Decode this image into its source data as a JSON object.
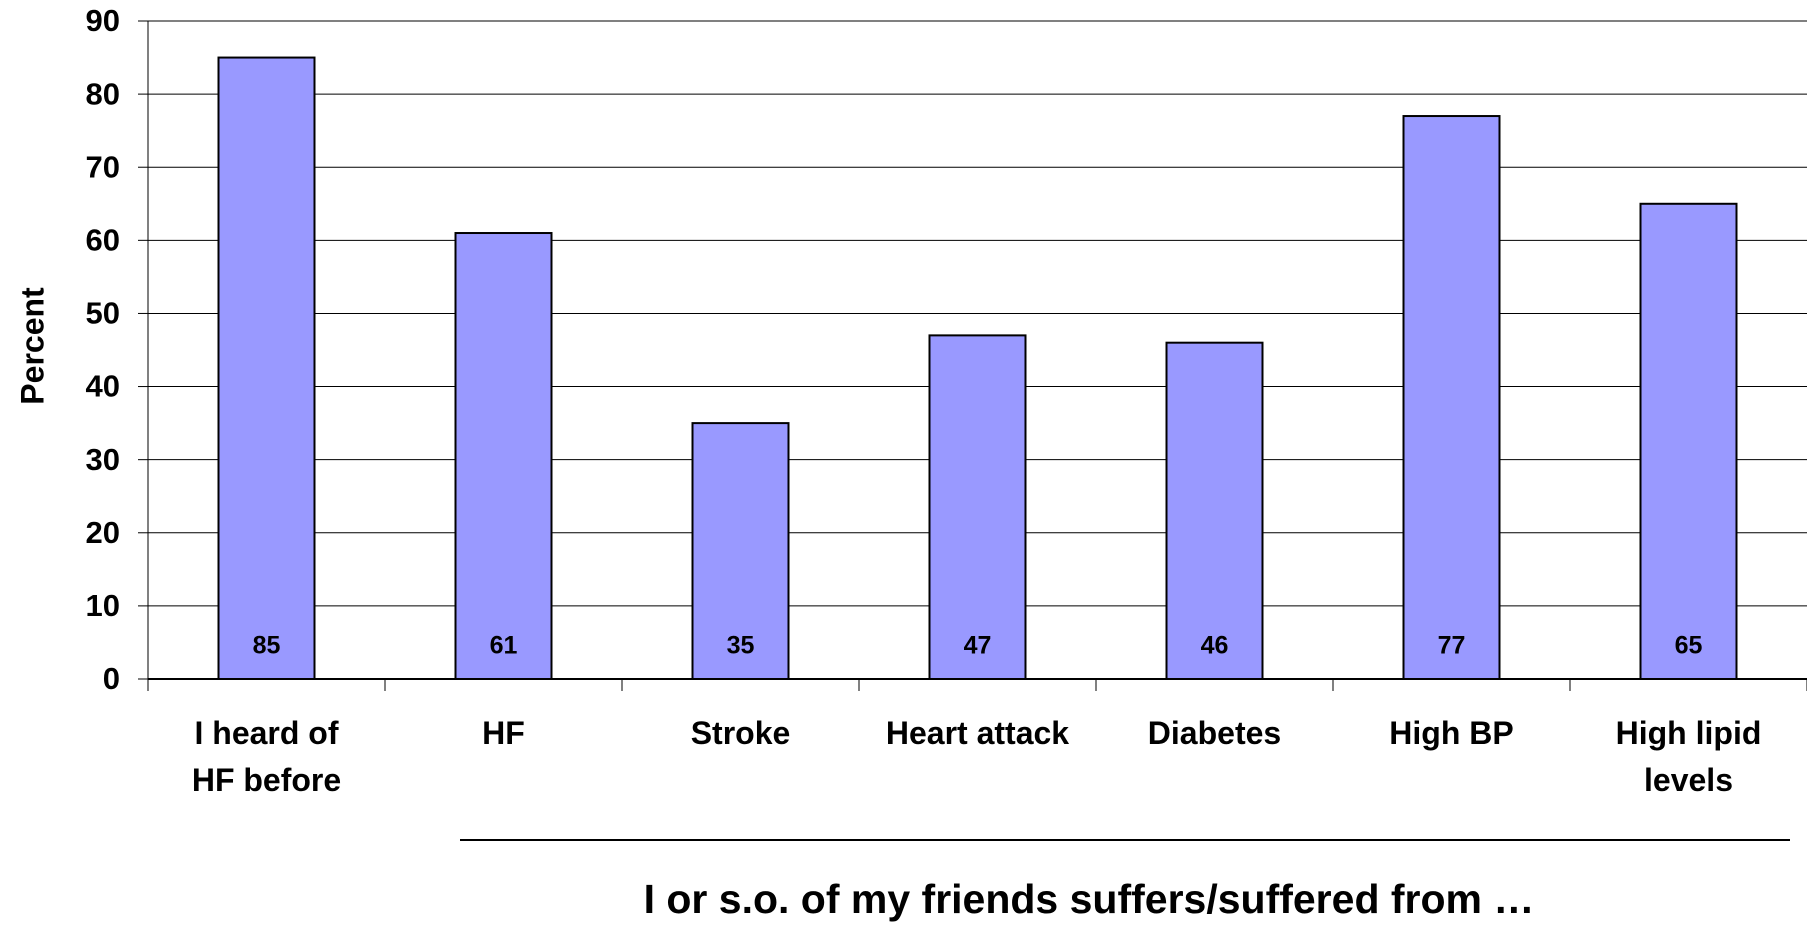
{
  "chart_data": {
    "type": "bar",
    "categories": [
      "I heard of\nHF before",
      "HF",
      "Stroke",
      "Heart attack",
      "Diabetes",
      "High BP",
      "High lipid\nlevels"
    ],
    "values": [
      85,
      61,
      35,
      47,
      46,
      77,
      65
    ],
    "color": "#9999ff",
    "ylabel": "Percent",
    "ylim": [
      0,
      90
    ],
    "yticks": [
      0,
      10,
      20,
      30,
      40,
      50,
      60,
      70,
      80,
      90
    ],
    "grid": true,
    "annotation": "I or s.o. of my friends suffers/suffered from …"
  }
}
